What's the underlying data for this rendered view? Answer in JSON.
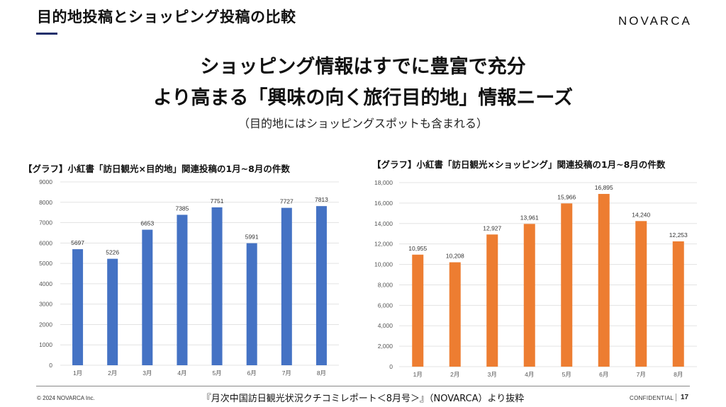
{
  "header": {
    "title": "目的地投稿とショッピング投稿の比較",
    "logo": "NOVARCA"
  },
  "headline": {
    "line1": "ショッピング情報はすでに豊富で充分",
    "line2": "より高まる「興味の向く旅行目的地」情報ニーズ",
    "note": "（目的地にはショッピングスポットも含まれる）"
  },
  "footer": {
    "copyright": "© 2024 NOVARCA Inc.",
    "source": "『月次中国訪日観光状況クチコミレポート＜8月号＞』（NOVARCA）より抜粋",
    "confidential": "CONFIDENTIAL",
    "page_number": "17"
  },
  "chart_data": [
    {
      "type": "bar",
      "title": "【グラフ】小紅書「訪日観光×目的地」関連投稿の1月~8月の件数",
      "categories": [
        "1月",
        "2月",
        "3月",
        "4月",
        "5月",
        "6月",
        "7月",
        "8月"
      ],
      "values": [
        5697,
        5226,
        6653,
        7385,
        7751,
        5991,
        7727,
        7813
      ],
      "value_labels": [
        "5697",
        "5226",
        "6653",
        "7385",
        "7751",
        "5991",
        "7727",
        "7813"
      ],
      "ylim": [
        0,
        9000
      ],
      "yticks": [
        0,
        1000,
        2000,
        3000,
        4000,
        5000,
        6000,
        7000,
        8000,
        9000
      ],
      "ytick_labels": [
        "0",
        "1000",
        "2000",
        "3000",
        "4000",
        "5000",
        "6000",
        "7000",
        "8000",
        "9000"
      ],
      "xlabel": "",
      "ylabel": "",
      "grid": true,
      "color": "#4472c4"
    },
    {
      "type": "bar",
      "title": "【グラフ】小紅書「訪日観光×ショッピング」関連投稿の1月~8月の件数",
      "categories": [
        "1月",
        "2月",
        "3月",
        "4月",
        "5月",
        "6月",
        "7月",
        "8月"
      ],
      "values": [
        10955,
        10208,
        12927,
        13961,
        15966,
        16895,
        14240,
        12253
      ],
      "value_labels": [
        "10,955",
        "10,208",
        "12,927",
        "13,961",
        "15,966",
        "16,895",
        "14,240",
        "12,253"
      ],
      "ylim": [
        0,
        18000
      ],
      "yticks": [
        0,
        2000,
        4000,
        6000,
        8000,
        10000,
        12000,
        14000,
        16000,
        18000
      ],
      "ytick_labels": [
        "0",
        "2,000",
        "4,000",
        "6,000",
        "8,000",
        "10,000",
        "12,000",
        "14,000",
        "16,000",
        "18,000"
      ],
      "xlabel": "",
      "ylabel": "",
      "grid": true,
      "color": "#ed7d31"
    }
  ]
}
